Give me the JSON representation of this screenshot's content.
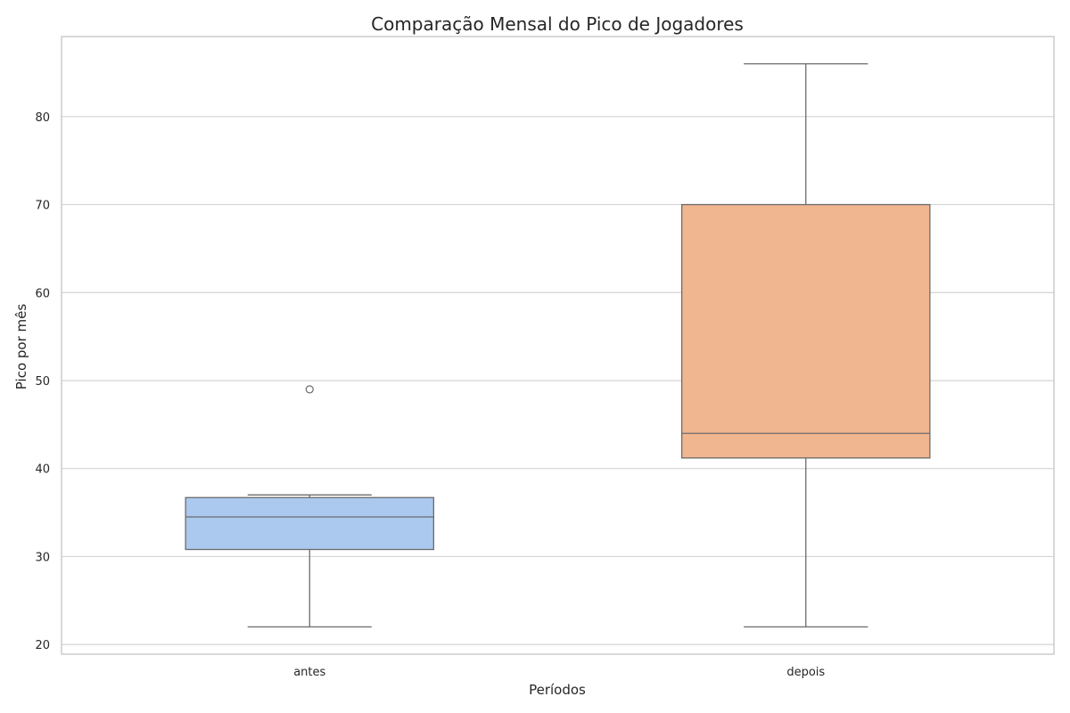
{
  "chart_data": {
    "type": "boxplot",
    "title": "Comparação Mensal do Pico de Jogadores",
    "xlabel": "Períodos",
    "ylabel": "Pico por mês",
    "ylim": [
      18.9,
      89.1
    ],
    "yticks": [
      20,
      30,
      40,
      50,
      60,
      70,
      80
    ],
    "grid": true,
    "categories": [
      "antes",
      "depois"
    ],
    "boxes": [
      {
        "category": "antes",
        "whisker_low": 22,
        "q1": 30.8,
        "median": 34.5,
        "q3": 36.7,
        "whisker_high": 37,
        "outliers": [
          49
        ],
        "color": "#abc9ee"
      },
      {
        "category": "depois",
        "whisker_low": 22,
        "q1": 41.2,
        "median": 44,
        "q3": 70,
        "whisker_high": 86,
        "outliers": [],
        "color": "#f0b690"
      }
    ],
    "colors": {
      "grid": "#d3d3d3",
      "frame": "#cccccc",
      "line": "#6b6b6b",
      "text": "#262626"
    }
  }
}
